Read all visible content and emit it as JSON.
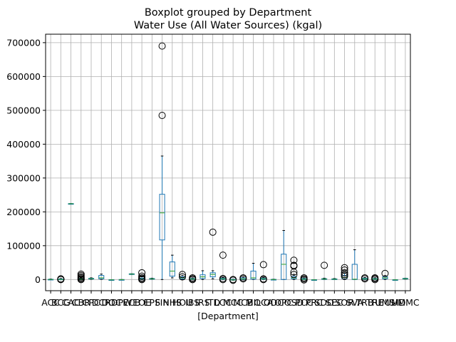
{
  "chart_data": {
    "type": "boxplot",
    "title": "Boxplot grouped by Department",
    "subtitle": "Water Use (All Water Sources) (kgal)",
    "xlabel": "[Department]",
    "ylabel": "",
    "ylim": [
      -33000,
      725000
    ],
    "yticks": [
      0,
      100000,
      200000,
      300000,
      400000,
      500000,
      600000,
      700000
    ],
    "ytick_labels": [
      "0",
      "100000",
      "200000",
      "300000",
      "400000",
      "500000",
      "600000",
      "700000"
    ],
    "grid": true,
    "box_color": "#1f77b4",
    "median_color": "#2ca02c",
    "flier_color": "#000000",
    "groups": [
      {
        "label": "ACC",
        "q1": 0,
        "median": 200,
        "q3": 800,
        "whislo": 0,
        "whishi": 1500,
        "fliers": []
      },
      {
        "label": "BCG",
        "q1": 0,
        "median": 300,
        "q3": 1500,
        "whislo": 0,
        "whishi": 3000,
        "fliers": [
          0,
          500,
          1000,
          1500,
          2000
        ]
      },
      {
        "label": "CAC",
        "q1": 223500,
        "median": 224000,
        "q3": 224500,
        "whislo": 223500,
        "whishi": 224500,
        "fliers": []
      },
      {
        "label": "CBR",
        "q1": 200,
        "median": 1000,
        "q3": 2500,
        "whislo": 0,
        "whishi": 5000,
        "fliers": [
          0,
          2000,
          5000,
          8000,
          12000,
          16000
        ]
      },
      {
        "label": "CPC",
        "q1": 1500,
        "median": 2500,
        "q3": 3500,
        "whislo": 500,
        "whishi": 5000,
        "fliers": []
      },
      {
        "label": "DCR",
        "q1": 2000,
        "median": 5000,
        "q3": 12000,
        "whislo": 500,
        "whishi": 16000,
        "fliers": []
      },
      {
        "label": "DOC",
        "q1": -1500,
        "median": -1000,
        "q3": -500,
        "whislo": -1500,
        "whishi": -500,
        "fliers": []
      },
      {
        "label": "DPW",
        "q1": -1000,
        "median": -500,
        "q3": 0,
        "whislo": -1000,
        "whishi": 0,
        "fliers": []
      },
      {
        "label": "ECB",
        "q1": 15000,
        "median": 16000,
        "q3": 17000,
        "whislo": 15000,
        "whishi": 17000,
        "fliers": []
      },
      {
        "label": "EOE",
        "q1": 500,
        "median": 2000,
        "q3": 4000,
        "whislo": 0,
        "whishi": 8000,
        "fliers": [
          0,
          2000,
          5000,
          10000,
          20000
        ]
      },
      {
        "label": "EPS",
        "q1": 1500,
        "median": 2000,
        "q3": 3000,
        "whislo": 500,
        "whishi": 4000,
        "fliers": []
      },
      {
        "label": "FIN",
        "q1": 117000,
        "median": 197000,
        "q3": 252000,
        "whislo": 0,
        "whishi": 365000,
        "fliers": [
          485000,
          690000
        ]
      },
      {
        "label": "HHS",
        "q1": 10000,
        "median": 25000,
        "q3": 52000,
        "whislo": 5000,
        "whishi": 72000,
        "fliers": []
      },
      {
        "label": "HOU",
        "q1": 2000,
        "median": 5000,
        "q3": 8000,
        "whislo": 0,
        "whishi": 12000,
        "fliers": [
          8000,
          15000
        ]
      },
      {
        "label": "IBS",
        "q1": 500,
        "median": 1500,
        "q3": 3000,
        "whislo": 0,
        "whishi": 5000,
        "fliers": [
          0,
          2000,
          5000
        ]
      },
      {
        "label": "IRS",
        "q1": 3000,
        "median": 8000,
        "q3": 14000,
        "whislo": 0,
        "whishi": 26000,
        "fliers": []
      },
      {
        "label": "ITD",
        "q1": 8000,
        "median": 15000,
        "q3": 20000,
        "whislo": 2000,
        "whishi": 26000,
        "fliers": [
          140000
        ]
      },
      {
        "label": "LCC",
        "q1": 500,
        "median": 2000,
        "q3": 4000,
        "whislo": 0,
        "whishi": 6000,
        "fliers": [
          0,
          3000,
          72000
        ]
      },
      {
        "label": "MCC",
        "q1": -1500,
        "median": -1000,
        "q3": 500,
        "whislo": -2000,
        "whishi": 1000,
        "fliers": [
          -2000,
          0
        ]
      },
      {
        "label": "MCB",
        "q1": 500,
        "median": 2000,
        "q3": 5000,
        "whislo": 0,
        "whishi": 7000,
        "fliers": [
          2000,
          5000
        ]
      },
      {
        "label": "MIL",
        "q1": 1000,
        "median": 5000,
        "q3": 25000,
        "whislo": 0,
        "whishi": 48000,
        "fliers": []
      },
      {
        "label": "OCA",
        "q1": 500,
        "median": 2000,
        "q3": 4000,
        "whislo": 0,
        "whishi": 6000,
        "fliers": [
          0,
          2000,
          44000
        ]
      },
      {
        "label": "ODC",
        "q1": -500,
        "median": 0,
        "q3": 500,
        "whislo": -1000,
        "whishi": 1000,
        "fliers": []
      },
      {
        "label": "OPC",
        "q1": 0,
        "median": 45000,
        "q3": 75000,
        "whislo": 0,
        "whishi": 145000,
        "fliers": []
      },
      {
        "label": "OSD",
        "q1": 2000,
        "median": 5000,
        "q3": 9000,
        "whislo": 0,
        "whishi": 15000,
        "fliers": [
          15000,
          22000,
          40000,
          42000,
          57000
        ]
      },
      {
        "label": "PCC",
        "q1": 0,
        "median": 1000,
        "q3": 3000,
        "whislo": 0,
        "whishi": 5000,
        "fliers": [
          -1000,
          2000,
          5000
        ]
      },
      {
        "label": "PRC",
        "q1": -1500,
        "median": -1000,
        "q3": -500,
        "whislo": -1500,
        "whishi": -500,
        "fliers": []
      },
      {
        "label": "SDO",
        "q1": 500,
        "median": 1500,
        "q3": 2500,
        "whislo": 0,
        "whishi": 4000,
        "fliers": [
          42000
        ]
      },
      {
        "label": "SEC",
        "q1": 500,
        "median": 1000,
        "q3": 2000,
        "whislo": 0,
        "whishi": 3000,
        "fliers": []
      },
      {
        "label": "SOR",
        "q1": 2000,
        "median": 6000,
        "q3": 12000,
        "whislo": 0,
        "whishi": 20000,
        "fliers": [
          10000,
          15000,
          20000,
          28000,
          35000
        ]
      },
      {
        "label": "SVA",
        "q1": 0,
        "median": 1000,
        "q3": 45000,
        "whislo": 0,
        "whishi": 88000,
        "fliers": []
      },
      {
        "label": "TRB",
        "q1": 500,
        "median": 2000,
        "q3": 4000,
        "whislo": 0,
        "whishi": 6000,
        "fliers": [
          2000,
          5000
        ]
      },
      {
        "label": "TRE",
        "q1": 500,
        "median": 1500,
        "q3": 3000,
        "whislo": 0,
        "whishi": 5000,
        "fliers": [
          0,
          3000,
          5000
        ]
      },
      {
        "label": "UMS",
        "q1": 2000,
        "median": 5000,
        "q3": 8000,
        "whislo": 0,
        "whishi": 12000,
        "fliers": [
          18000
        ]
      },
      {
        "label": "UMD",
        "q1": -1500,
        "median": -1000,
        "q3": -500,
        "whislo": -1500,
        "whishi": -500,
        "fliers": []
      },
      {
        "label": "UMMC",
        "q1": 1500,
        "median": 2500,
        "q3": 3500,
        "whislo": 1000,
        "whishi": 4000,
        "fliers": []
      }
    ]
  }
}
